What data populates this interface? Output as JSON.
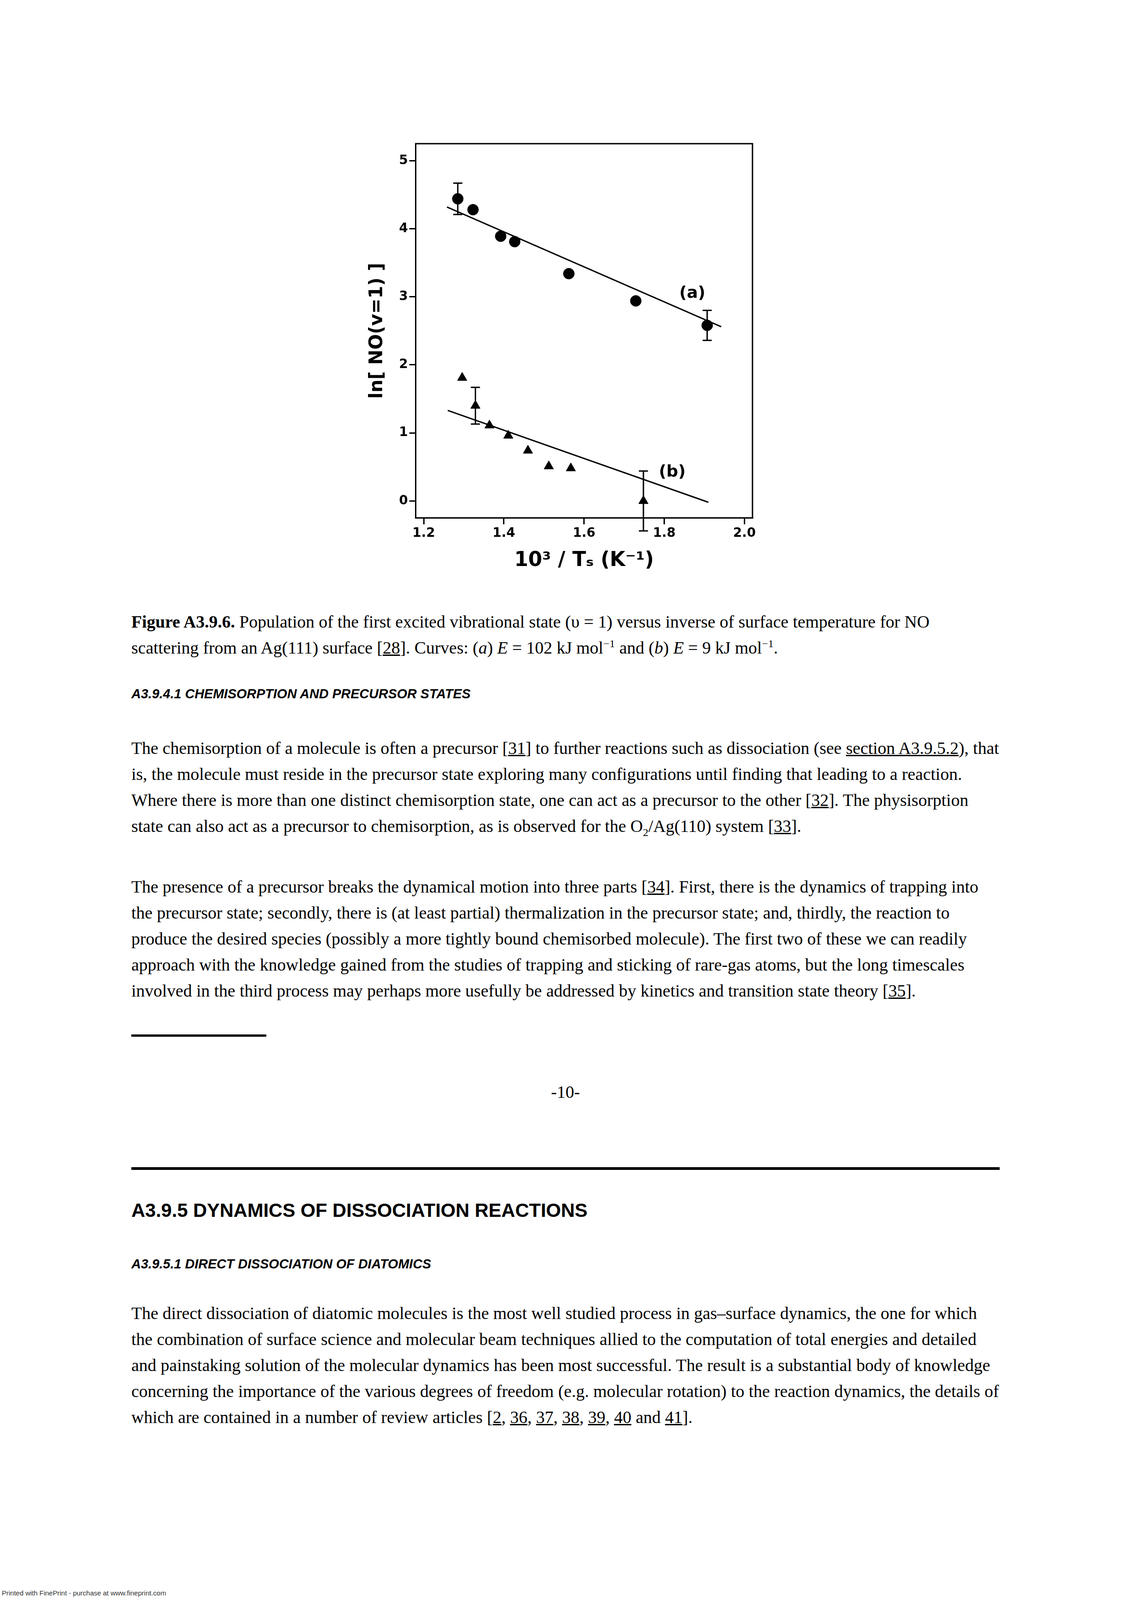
{
  "chart_data": {
    "type": "scatter",
    "x_label": "10³ / Tₛ (K⁻¹)",
    "y_label": "ln[ NO(v=1) ]",
    "xlim": [
      1.18,
      2.02
    ],
    "xticks": [
      1.2,
      1.4,
      1.6,
      1.8,
      {
        "value": 2,
        "label": "2.0"
      }
    ],
    "ylim": [
      -0.25,
      5.25
    ],
    "yticks": [
      0,
      1,
      2,
      3,
      4,
      5
    ],
    "grid": false,
    "series": [
      {
        "marker": "circle",
        "color": "#000000",
        "x": [
          1.285,
          1.323,
          1.392,
          1.427,
          1.562,
          1.729,
          1.907
        ],
        "values": [
          4.44,
          4.28,
          3.89,
          3.81,
          3.34,
          2.94,
          2.58
        ],
        "errors": [
          0.23,
          null,
          null,
          null,
          null,
          null,
          0.22
        ]
      },
      {
        "type": "line",
        "line_style": "solid",
        "color": "#000000",
        "x": [
          1.258,
          1.942
        ],
        "values": [
          4.32,
          2.56
        ]
      },
      {
        "marker": "triangle",
        "color": "#000000",
        "x": [
          1.296,
          1.329,
          1.364,
          1.411,
          1.46,
          1.512,
          1.567,
          1.748
        ],
        "values": [
          1.81,
          1.4,
          1.11,
          0.96,
          0.74,
          0.51,
          0.48,
          0.0
        ],
        "errors": [
          null,
          0.27,
          null,
          null,
          null,
          null,
          null,
          0.44
        ]
      },
      {
        "type": "line",
        "line_style": "solid",
        "color": "#000000",
        "x": [
          1.26,
          1.91
        ],
        "values": [
          1.33,
          -0.02
        ]
      }
    ],
    "annotations": [
      {
        "text": "(a)",
        "x": 1.87,
        "y": 3.05
      },
      {
        "text": "(b)",
        "x": 1.82,
        "y": 0.42
      }
    ]
  },
  "document": {
    "caption": [
      {
        "b": "Figure A3.9.6."
      },
      " Population of the first excited vibrational state (υ = 1) versus inverse of surface temperature for NO scattering from an Ag(111) surface [",
      {
        "link": "28"
      },
      "]. Curves: (",
      {
        "i": "a"
      },
      ") ",
      {
        "i": "E"
      },
      " = 102 kJ mol",
      {
        "sup": "−1"
      },
      " and (",
      {
        "i": "b"
      },
      ") ",
      {
        "i": "E"
      },
      " = 9 kJ mol",
      {
        "sup": "−1"
      },
      "."
    ],
    "heading_1": "A3.9.4.1 CHEMISORPTION AND PRECURSOR STATES",
    "paragraph_1": [
      "The chemisorption of a molecule is often a precursor [",
      {
        "link": "31"
      },
      "] to further reactions such as dissociation (see ",
      {
        "link": "section A3.9.5.2"
      },
      "), that is, the molecule must reside in the precursor state exploring many configurations until finding that leading to a reaction. Where there is more than one distinct chemisorption state, one can act as a precursor to the other [",
      {
        "link": "32"
      },
      "]. The physisorption state can also act as a precursor to chemisorption, as is observed for the O",
      {
        "sub": "2"
      },
      "/Ag(110) system [",
      {
        "link": "33"
      },
      "]."
    ],
    "paragraph_2": [
      "The presence of a precursor breaks the dynamical motion into three parts [",
      {
        "link": "34"
      },
      "]. First, there is the dynamics of trapping into the precursor state; secondly, there is (at least partial) thermalization in the precursor state; and, thirdly, the reaction to produce the desired species (possibly a more tightly bound chemisorbed molecule). The first two of these we can readily approach with the knowledge gained from the studies of trapping and sticking of rare-gas atoms, but the long timescales involved in the third process may perhaps more usefully be addressed by kinetics and transition state theory [",
      {
        "link": "35"
      },
      "]."
    ],
    "page_number": "-10-",
    "section_heading": "A3.9.5 DYNAMICS OF DISSOCIATION REACTIONS",
    "subsection_heading": "A3.9.5.1 DIRECT DISSOCIATION OF DIATOMICS",
    "paragraph_3": [
      "The direct dissociation of diatomic molecules is the most well studied process in gas–surface dynamics, the one for which the combination of surface science and molecular beam techniques allied to the computation of total energies and detailed and painstaking solution of the molecular dynamics has been most successful. The result is a substantial body of knowledge concerning the importance of the various degrees of freedom (e.g. molecular rotation) to the reaction dynamics, the details of which are contained in a number of review articles [",
      {
        "link": "2"
      },
      ", ",
      {
        "link": "36"
      },
      ", ",
      {
        "link": "37"
      },
      ", ",
      {
        "link": "38"
      },
      ", ",
      {
        "link": "39"
      },
      ", ",
      {
        "link": "40"
      },
      " and ",
      {
        "link": "41"
      },
      "]."
    ],
    "footer": "Printed with FinePrint - purchase at www.fineprint.com"
  }
}
